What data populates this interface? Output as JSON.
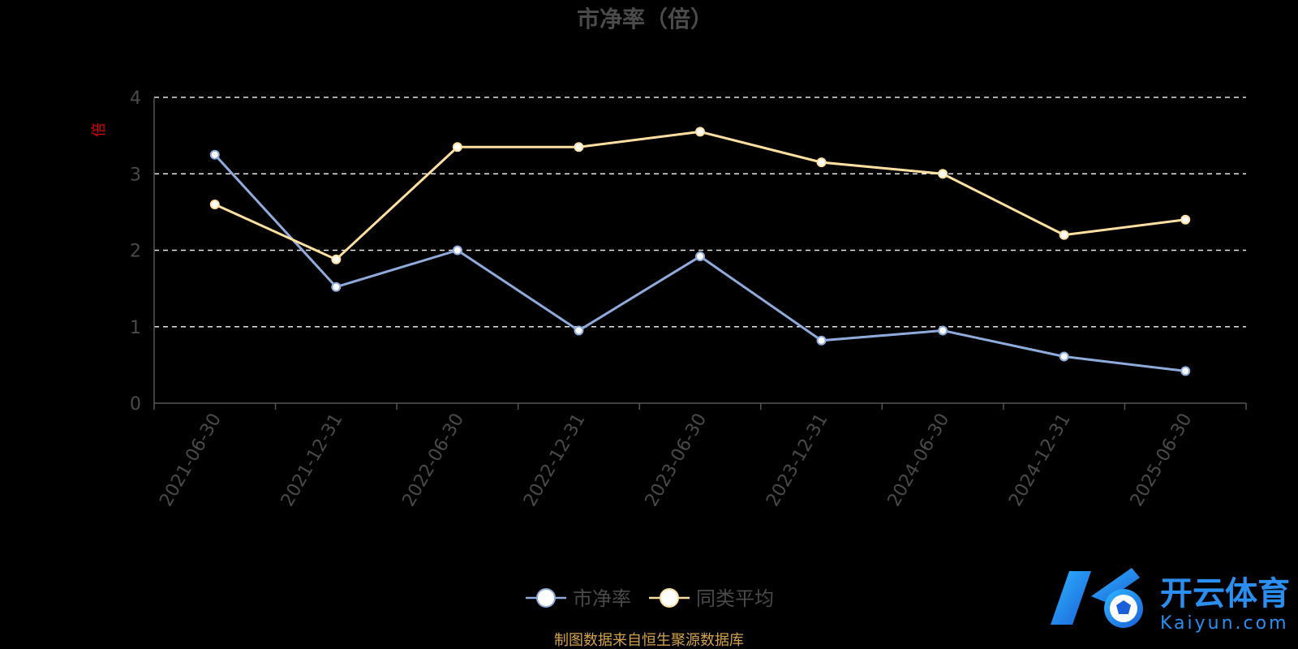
{
  "chart_data": {
    "type": "line",
    "title": "市净率（倍）",
    "ylabel": "倍",
    "xlabel": "",
    "categories": [
      "2021-06-30",
      "2021-12-31",
      "2022-06-30",
      "2022-12-31",
      "2023-06-30",
      "2023-12-31",
      "2024-06-30",
      "2024-12-31",
      "2025-06-30"
    ],
    "ylim": [
      0,
      4
    ],
    "yticks": [
      "0",
      "1",
      "2",
      "3",
      "4"
    ],
    "grid": true,
    "legend_position": "bottom-center",
    "series": [
      {
        "name": "市净率",
        "color": "#8fabdc",
        "values": [
          3.25,
          1.52,
          2.0,
          0.95,
          1.92,
          0.82,
          0.95,
          0.61,
          0.42
        ]
      },
      {
        "name": "同类平均",
        "color": "#ffe0a0",
        "values": [
          2.6,
          1.88,
          3.35,
          3.35,
          3.55,
          3.15,
          3.0,
          2.2,
          2.4
        ]
      }
    ]
  },
  "footer": {
    "source": "制图数据来自恒生聚源数据库"
  },
  "watermark": {
    "text_cn": "开云体育",
    "text_en": "Kaiyun.com"
  }
}
